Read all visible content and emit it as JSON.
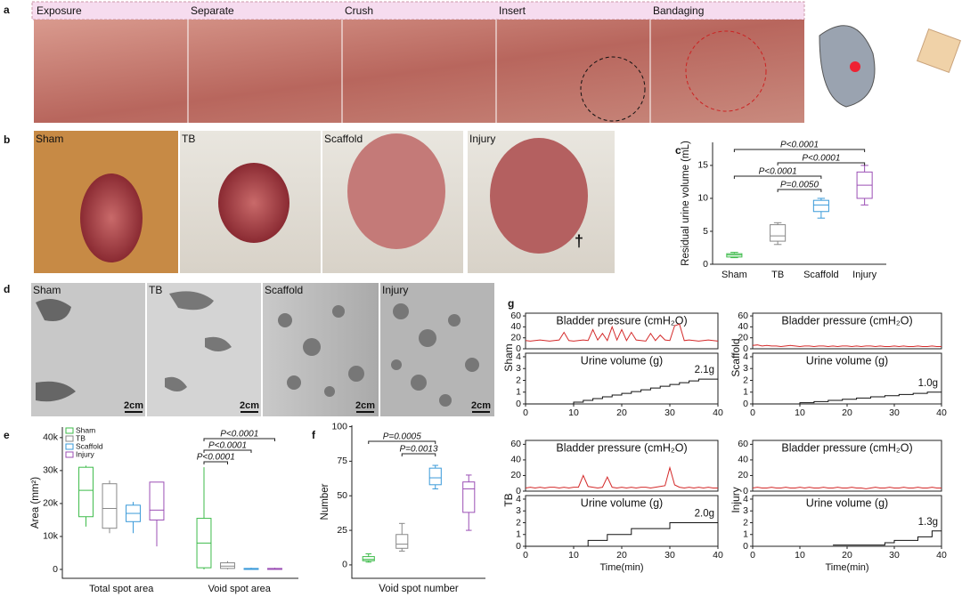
{
  "figure": {
    "panel_labels": [
      "a",
      "b",
      "c",
      "d",
      "e",
      "f",
      "g"
    ],
    "a_steps": [
      "Exposure",
      "Separate",
      "Crush",
      "Insert",
      "Bandaging"
    ],
    "b_labels": [
      "Sham",
      "TB",
      "Scaffold",
      "Injury"
    ],
    "b_dagger": "†",
    "d_labels": [
      "Sham",
      "TB",
      "Scaffold",
      "Injury"
    ],
    "scale_bars": [
      "2cm",
      "2cm",
      "2cm",
      "2cm"
    ]
  },
  "chart_data": [
    {
      "type": "box",
      "ylabel": "Residual urine volume (mL)",
      "categories": [
        "Sham",
        "TB",
        "Scaffold",
        "Injury"
      ],
      "boxes": [
        {
          "color": "#3dbb4a",
          "min": 1.0,
          "q1": 1.1,
          "median": 1.4,
          "q3": 1.6,
          "max": 1.8
        },
        {
          "color": "#888888",
          "min": 3.0,
          "q1": 3.5,
          "median": 4.3,
          "q3": 6.0,
          "max": 6.3
        },
        {
          "color": "#3a9ad9",
          "min": 7.0,
          "q1": 8.0,
          "median": 9.0,
          "q3": 9.7,
          "max": 10.0
        },
        {
          "color": "#9b4fb5",
          "min": 9.0,
          "q1": 10.0,
          "median": 12.0,
          "q3": 14.0,
          "max": 15.0
        }
      ],
      "ylim": [
        0,
        18.5
      ],
      "yticks": [
        0,
        5,
        10,
        15
      ],
      "brackets": [
        {
          "text": "P<0.0001",
          "between": [
            0,
            3
          ]
        },
        {
          "text": "P<0.0001",
          "between": [
            1,
            3
          ]
        },
        {
          "text": "P<0.0001",
          "between": [
            0,
            2
          ]
        },
        {
          "text": "P=0.0050",
          "between": [
            1,
            2
          ]
        }
      ]
    },
    {
      "type": "box",
      "ylabel": "Area (mm²)",
      "categories": [
        "Total spot area",
        "Void spot area"
      ],
      "series": [
        {
          "name": "Sham",
          "color": "#3dbb4a",
          "min": [
            13000,
            0
          ],
          "q1": [
            16000,
            500
          ],
          "median": [
            24000,
            8000
          ],
          "q3": [
            31000,
            15500
          ],
          "max": [
            31500,
            31000
          ]
        },
        {
          "name": "TB",
          "color": "#888888",
          "min": [
            11000,
            0
          ],
          "q1": [
            12500,
            300
          ],
          "median": [
            18500,
            1000
          ],
          "q3": [
            26000,
            2000
          ],
          "max": [
            27000,
            2500
          ]
        },
        {
          "name": "Scaffold",
          "color": "#3a9ad9",
          "min": [
            11000,
            0
          ],
          "q1": [
            14500,
            0
          ],
          "median": [
            17000,
            200
          ],
          "q3": [
            19500,
            300
          ],
          "max": [
            20500,
            500
          ]
        },
        {
          "name": "Injury",
          "color": "#9b4fb5",
          "min": [
            7000,
            0
          ],
          "q1": [
            15000,
            0
          ],
          "median": [
            18000,
            200
          ],
          "q3": [
            26500,
            300
          ],
          "max": [
            26500,
            500
          ]
        }
      ],
      "ylim": [
        -2700,
        43200
      ],
      "yticks": [
        0,
        {
          "value": 10000,
          "label": "10k"
        },
        {
          "value": 20000,
          "label": "20k"
        },
        {
          "value": 30000,
          "label": "30k"
        },
        {
          "value": 40000,
          "label": "40k"
        }
      ],
      "legend": "top-left",
      "brackets": [
        {
          "text": "P<0.0001",
          "between": [
            0,
            3
          ]
        },
        {
          "text": "P<0.0001",
          "between": [
            0,
            2
          ]
        },
        {
          "text": "P<0.0001",
          "between": [
            0,
            1
          ]
        }
      ]
    },
    {
      "type": "box",
      "ylabel": "Number",
      "xlabel": "Void spot number",
      "boxes": [
        {
          "color": "#3dbb4a",
          "min": 2,
          "q1": 3,
          "median": 4,
          "q3": 6,
          "max": 8
        },
        {
          "color": "#888888",
          "min": 10,
          "q1": 12,
          "median": 15,
          "q3": 22,
          "max": 30
        },
        {
          "color": "#3a9ad9",
          "min": 55,
          "q1": 58,
          "median": 63,
          "q3": 70,
          "max": 72
        },
        {
          "color": "#9b4fb5",
          "min": 25,
          "q1": 38,
          "median": 55,
          "q3": 60,
          "max": 65
        }
      ],
      "ylim": [
        -9.7,
        101
      ],
      "yticks": [
        0,
        25,
        50,
        75,
        100
      ],
      "brackets": [
        {
          "text": "P=0.0005",
          "between": [
            0,
            2
          ]
        },
        {
          "text": "P=0.0013",
          "between": [
            1,
            2
          ]
        }
      ]
    },
    {
      "type": "line",
      "title": "Bladder pressure (cmH₂O)",
      "ylabel": "Sham",
      "color": "#d42a2a",
      "x": [
        0,
        1,
        2,
        3,
        4,
        5,
        6,
        7,
        8,
        9,
        10,
        11,
        12,
        13,
        14,
        15,
        16,
        17,
        18,
        19,
        20,
        21,
        22,
        23,
        24,
        25,
        26,
        27,
        28,
        29,
        30,
        31,
        32,
        33,
        34,
        35,
        36,
        37,
        38,
        39,
        40
      ],
      "values": [
        15,
        14,
        15,
        16,
        15,
        14,
        15,
        16,
        30,
        15,
        14,
        15,
        16,
        15,
        35,
        16,
        28,
        15,
        40,
        16,
        35,
        15,
        30,
        16,
        15,
        14,
        28,
        15,
        25,
        16,
        15,
        42,
        45,
        15,
        16,
        15,
        14,
        15,
        16,
        15,
        14
      ],
      "xlim": [
        0,
        40
      ],
      "ylim": [
        0,
        65
      ],
      "yticks": [
        0,
        20,
        40,
        60
      ]
    },
    {
      "type": "line",
      "title": "Urine volume (g)",
      "annotation": "2.1g",
      "color": "#111111",
      "x": [
        0,
        10,
        10,
        12,
        12,
        14,
        14,
        16,
        16,
        18,
        18,
        20,
        20,
        22,
        22,
        24,
        24,
        26,
        26,
        28,
        28,
        30,
        30,
        32,
        32,
        34,
        34,
        36,
        36,
        40
      ],
      "values": [
        0,
        0,
        0.15,
        0.15,
        0.3,
        0.3,
        0.45,
        0.45,
        0.6,
        0.6,
        0.75,
        0.75,
        0.9,
        0.9,
        1.05,
        1.05,
        1.2,
        1.2,
        1.35,
        1.35,
        1.5,
        1.5,
        1.65,
        1.65,
        1.8,
        1.8,
        1.95,
        1.95,
        2.1,
        2.1
      ],
      "xlim": [
        0,
        40
      ],
      "ylim": [
        0,
        4.3
      ],
      "yticks": [
        0,
        1,
        2,
        3,
        4
      ],
      "xticks": [
        0,
        10,
        20,
        30,
        40
      ]
    },
    {
      "type": "line",
      "title": "Bladder pressure (cmH₂O)",
      "ylabel": "Scaffold",
      "color": "#d42a2a",
      "x": [
        0,
        1,
        2,
        3,
        4,
        5,
        6,
        7,
        8,
        9,
        10,
        11,
        12,
        13,
        14,
        15,
        16,
        17,
        18,
        19,
        20,
        21,
        22,
        23,
        24,
        25,
        26,
        27,
        28,
        29,
        30,
        31,
        32,
        33,
        34,
        35,
        36,
        37,
        38,
        39,
        40
      ],
      "values": [
        6,
        7,
        5,
        6,
        5,
        5,
        4,
        5,
        6,
        5,
        4,
        5,
        5,
        4,
        5,
        5,
        4,
        5,
        4,
        5,
        5,
        4,
        5,
        4,
        5,
        5,
        4,
        5,
        4,
        4,
        5,
        4,
        5,
        4,
        4,
        5,
        4,
        4,
        5,
        4,
        4
      ],
      "xlim": [
        0,
        40
      ],
      "ylim": [
        0,
        65
      ],
      "yticks": [
        0,
        20,
        40,
        60
      ]
    },
    {
      "type": "line",
      "title": "Urine volume (g)",
      "annotation": "1.0g",
      "color": "#111111",
      "x": [
        0,
        10,
        10,
        13,
        13,
        16,
        16,
        19,
        19,
        22,
        22,
        25,
        25,
        28,
        28,
        31,
        31,
        34,
        34,
        37,
        37,
        40
      ],
      "values": [
        0,
        0,
        0.1,
        0.1,
        0.2,
        0.2,
        0.3,
        0.3,
        0.4,
        0.4,
        0.5,
        0.5,
        0.6,
        0.6,
        0.7,
        0.7,
        0.8,
        0.8,
        0.9,
        0.9,
        1.0,
        1.0
      ],
      "xlim": [
        0,
        40
      ],
      "ylim": [
        0,
        4.3
      ],
      "yticks": [
        0,
        1,
        2,
        3,
        4
      ],
      "xticks": [
        0,
        10,
        20,
        30,
        40
      ]
    },
    {
      "type": "line",
      "title": "Bladder pressure (cmH₂O)",
      "ylabel": "TB",
      "color": "#d42a2a",
      "x": [
        0,
        1,
        2,
        3,
        4,
        5,
        6,
        7,
        8,
        9,
        10,
        11,
        12,
        13,
        14,
        15,
        16,
        17,
        18,
        19,
        20,
        21,
        22,
        23,
        24,
        25,
        26,
        27,
        28,
        29,
        30,
        31,
        32,
        33,
        34,
        35,
        36,
        37,
        38,
        39,
        40
      ],
      "values": [
        4,
        5,
        4,
        5,
        4,
        5,
        5,
        4,
        5,
        4,
        5,
        5,
        20,
        6,
        5,
        4,
        5,
        18,
        5,
        4,
        5,
        4,
        5,
        4,
        5,
        5,
        4,
        5,
        6,
        7,
        30,
        8,
        5,
        4,
        5,
        4,
        5,
        4,
        5,
        4,
        4
      ],
      "xlim": [
        0,
        40
      ],
      "ylim": [
        0,
        65
      ],
      "yticks": [
        0,
        20,
        40,
        60
      ]
    },
    {
      "type": "line",
      "title": "Urine volume (g)",
      "annotation": "2.0g",
      "xlabel": "Time(min)",
      "color": "#111111",
      "x": [
        0,
        12,
        13,
        13,
        17,
        17,
        22,
        22,
        30,
        30,
        40
      ],
      "values": [
        0,
        0,
        0,
        0.5,
        0.5,
        1.0,
        1.0,
        1.5,
        1.5,
        2.0,
        2.0
      ],
      "xlim": [
        0,
        40
      ],
      "ylim": [
        0,
        4.3
      ],
      "yticks": [
        0,
        1,
        2,
        3,
        4
      ],
      "xticks": [
        0,
        10,
        20,
        30,
        40
      ]
    },
    {
      "type": "line",
      "title": "Bladder pressure (cmH₂O)",
      "ylabel": "Injury",
      "color": "#d42a2a",
      "x": [
        0,
        1,
        2,
        3,
        4,
        5,
        6,
        7,
        8,
        9,
        10,
        11,
        12,
        13,
        14,
        15,
        16,
        17,
        18,
        19,
        20,
        21,
        22,
        23,
        24,
        25,
        26,
        27,
        28,
        29,
        30,
        31,
        32,
        33,
        34,
        35,
        36,
        37,
        38,
        39,
        40
      ],
      "values": [
        4,
        5,
        4,
        4,
        5,
        4,
        4,
        5,
        4,
        4,
        5,
        4,
        5,
        4,
        4,
        5,
        4,
        4,
        5,
        4,
        4,
        5,
        4,
        4,
        3,
        4,
        5,
        4,
        4,
        5,
        4,
        4,
        5,
        4,
        4,
        5,
        4,
        4,
        5,
        4,
        4
      ],
      "xlim": [
        0,
        40
      ],
      "ylim": [
        0,
        65
      ],
      "yticks": [
        0,
        20,
        40,
        60
      ]
    },
    {
      "type": "line",
      "title": "Urine volume (g)",
      "annotation": "1.3g",
      "xlabel": "Time(min)",
      "color": "#111111",
      "x": [
        17,
        28,
        28,
        30,
        30,
        35,
        35,
        38,
        38,
        40
      ],
      "values": [
        0.1,
        0.1,
        0.3,
        0.3,
        0.5,
        0.5,
        0.8,
        0.8,
        1.3,
        1.3
      ],
      "xlim": [
        0,
        40
      ],
      "ylim": [
        0,
        4.3
      ],
      "yticks": [
        0,
        1,
        2,
        3,
        4
      ],
      "xticks": [
        0,
        10,
        20,
        30,
        40
      ]
    }
  ]
}
